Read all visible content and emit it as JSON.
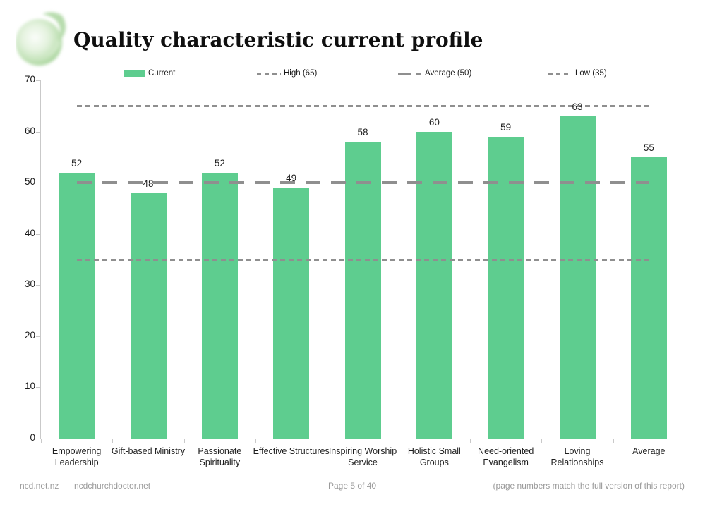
{
  "header": {
    "title": "Quality characteristic current profile"
  },
  "legend": {
    "current": "Current",
    "high": "High (65)",
    "average": "Average (50)",
    "low": "Low (35)"
  },
  "colors": {
    "bar": "#5ecd8f",
    "ref_line": "#8f8f8f",
    "axis": "#c9c9c9"
  },
  "chart_data": {
    "type": "bar",
    "title": "Quality characteristic current profile",
    "series_name": "Current",
    "categories": [
      "Empowering Leadership",
      "Gift-based Ministry",
      "Passionate Spirituality",
      "Effective Structures",
      "Inspiring Worship Service",
      "Holistic Small Groups",
      "Need-oriented Evangelism",
      "Loving Relationships",
      "Average"
    ],
    "category_display": [
      "Empowering\nLeadership",
      "Gift-based Ministry",
      "Passionate\nSpirituality",
      "Effective Structures",
      "Inspiring Worship\nService",
      "Holistic Small\nGroups",
      "Need-oriented\nEvangelism",
      "Loving\nRelationships",
      "Average"
    ],
    "values": [
      52,
      48,
      52,
      49,
      58,
      60,
      59,
      63,
      55
    ],
    "ylim": [
      0,
      70
    ],
    "ytick_step": 10,
    "grid": false,
    "legend_position": "top",
    "reference_lines": [
      {
        "label": "High (65)",
        "value": 65,
        "style": "short-dash"
      },
      {
        "label": "Average (50)",
        "value": 50,
        "style": "long-dash"
      },
      {
        "label": "Low (35)",
        "value": 35,
        "style": "short-dash"
      }
    ]
  },
  "footer": {
    "link1": "ncd.net.nz",
    "link2": "ncdchurchdoctor.net",
    "page": "Page 5 of 40",
    "note": "(page numbers match the full version of this report)"
  }
}
